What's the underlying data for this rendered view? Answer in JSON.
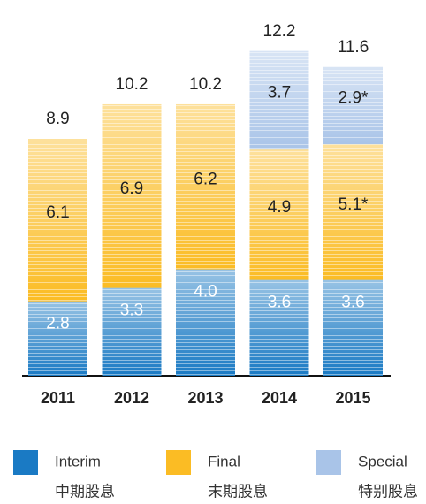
{
  "chart_data": {
    "type": "stacked_bar",
    "categories": [
      "2011",
      "2012",
      "2013",
      "2014",
      "2015"
    ],
    "series": [
      {
        "name": "Interim",
        "name_cn": "中期股息",
        "color": "#1a7ac4",
        "values": [
          2.8,
          3.3,
          4.0,
          3.6,
          3.6
        ],
        "value_labels": [
          "2.8",
          "3.3",
          "4.0",
          "3.6",
          "3.6"
        ]
      },
      {
        "name": "Final",
        "name_cn": "末期股息",
        "color": "#fbbc24",
        "values": [
          6.1,
          6.9,
          6.2,
          4.9,
          5.1
        ],
        "value_labels": [
          "6.1",
          "6.9",
          "6.2",
          "4.9",
          "5.1*"
        ]
      },
      {
        "name": "Special",
        "name_cn": "特别股息",
        "color": "#a9c4e8",
        "values": [
          null,
          null,
          null,
          3.7,
          2.9
        ],
        "value_labels": [
          null,
          null,
          null,
          "3.7",
          "2.9*"
        ]
      }
    ],
    "totals": [
      8.9,
      10.2,
      10.2,
      12.2,
      11.6
    ]
  }
}
